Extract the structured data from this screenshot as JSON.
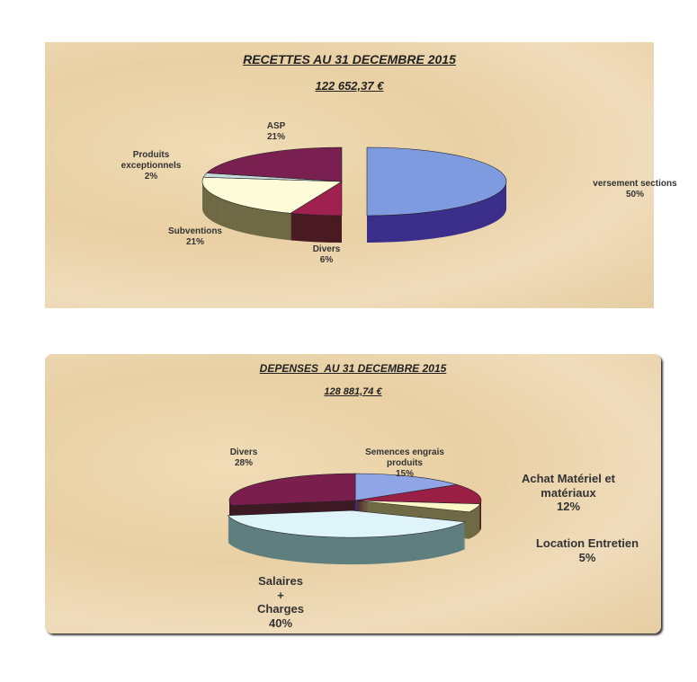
{
  "chart_data": [
    {
      "type": "pie",
      "title": "RECETTES AU 31 DECEMBRE 2015",
      "subtitle": "122 652,37 €",
      "slices": [
        {
          "label": "versement sections",
          "value": 50,
          "pct": "50%",
          "top": "#7f9be0",
          "side": "#3a2f8a",
          "explode": true
        },
        {
          "label": "Divers",
          "value": 6,
          "pct": "6%",
          "top": "#a02050",
          "side": "#4a1a22",
          "explode": false
        },
        {
          "label": "Subventions",
          "value": 21,
          "pct": "21%",
          "top": "#fdfbd8",
          "side": "#6f6a45",
          "explode": false
        },
        {
          "label": "Produits exceptionnels",
          "value": 2,
          "pct": "2%",
          "top": "#c5dcdc",
          "side": "#4a5555",
          "explode": false
        },
        {
          "label": "ASP",
          "value": 21,
          "pct": "21%",
          "top": "#7a2050",
          "side": "#4a1530",
          "explode": false
        }
      ]
    },
    {
      "type": "pie",
      "title": "DEPENSES  AU 31 DECEMBRE 2015",
      "subtitle": "128 881,74 €",
      "slices": [
        {
          "label": "Semences engrais produits",
          "value": 15,
          "pct": "15%",
          "top": "#8fa5e5",
          "side": "#3b2d8a",
          "explode": false
        },
        {
          "label": "Achat Matériel et matériaux",
          "value": 12,
          "pct": "12%",
          "top": "#9a1f45",
          "side": "#4a1525",
          "explode": false
        },
        {
          "label": "Location Entretien",
          "value": 5,
          "pct": "5%",
          "top": "#fdf7c8",
          "side": "#6f6a45",
          "explode": false
        },
        {
          "label": "Salaires + Charges",
          "value": 40,
          "pct": "40%",
          "top": "#dff4f8",
          "side": "#5f7f7f",
          "explode": true
        },
        {
          "label": "Divers",
          "value": 28,
          "pct": "28%",
          "top": "#7a1f4d",
          "side": "#3d1a25",
          "explode": false
        }
      ]
    }
  ]
}
